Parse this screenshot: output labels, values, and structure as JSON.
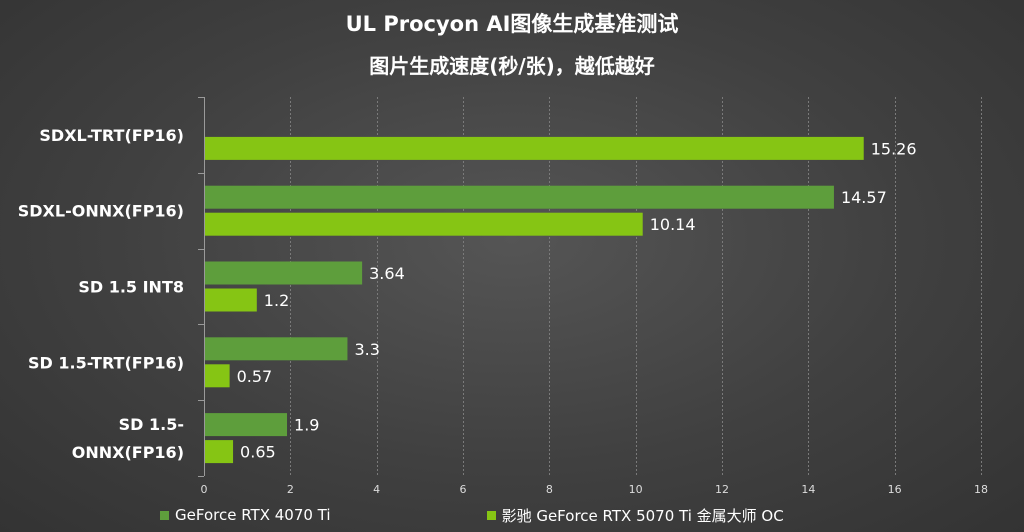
{
  "chart_data": {
    "type": "bar",
    "orientation": "horizontal",
    "title": "UL Procyon AI图像生成基准测试",
    "subtitle": "图片生成速度(秒/张)，越低越好",
    "categories": [
      "SDXL-TRT(FP16)",
      "SDXL-ONNX(FP16)",
      "SD 1.5 INT8",
      "SD 1.5-TRT(FP16)",
      "SD 1.5-ONNX(FP16)"
    ],
    "category_display": [
      [
        "SDXL-TRT(FP16)"
      ],
      [
        "SDXL-ONNX(FP16)"
      ],
      [
        "SD 1.5 INT8"
      ],
      [
        "SD 1.5-TRT(FP16)"
      ],
      [
        "SD 1.5-",
        "ONNX(FP16)"
      ]
    ],
    "series": [
      {
        "name": "GeForce RTX 4070 Ti",
        "color": "#5e9e3c",
        "values": [
          null,
          14.57,
          3.64,
          3.3,
          1.9
        ],
        "labels": [
          "",
          "14.57",
          "3.64",
          "3.3",
          "1.9"
        ]
      },
      {
        "name": "影驰 GeForce RTX 5070 Ti 金属大师 OC",
        "color": "#86c514",
        "values": [
          15.26,
          10.14,
          1.2,
          0.57,
          0.65
        ],
        "labels": [
          "15.26",
          "10.14",
          "1.2",
          "0.57",
          "0.65"
        ]
      }
    ],
    "xlim": [
      0,
      18
    ],
    "xticks": [
      "0",
      "2",
      "4",
      "6",
      "8",
      "10",
      "12",
      "14",
      "16",
      "18"
    ],
    "grid": true,
    "legend_position": "bottom"
  }
}
